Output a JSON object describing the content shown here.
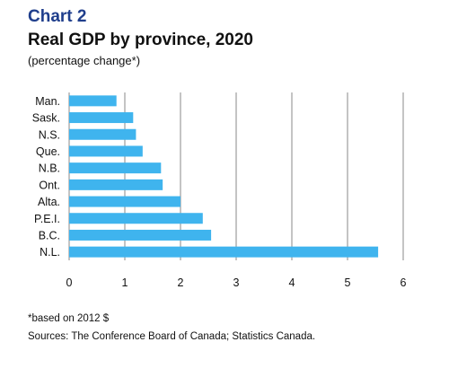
{
  "header": {
    "chart_number": "Chart 2",
    "title": "Real GDP by province, 2020",
    "subtitle": "(percentage change*)"
  },
  "footer": {
    "footnote": "*based on 2012 $",
    "source": "Sources: The Conference Board of Canada; Statistics Canada."
  },
  "colors": {
    "bar": "#3fb4ee",
    "grid": "#888888",
    "chart_number": "#1f3e8c"
  },
  "chart_data": {
    "type": "bar",
    "orientation": "horizontal",
    "title": "Real GDP by province, 2020",
    "subtitle": "(percentage change*)",
    "categories": [
      "Man.",
      "Sask.",
      "N.S.",
      "Que.",
      "N.B.",
      "Ont.",
      "Alta.",
      "P.E.I.",
      "B.C.",
      "N.L."
    ],
    "values": [
      0.85,
      1.15,
      1.2,
      1.32,
      1.65,
      1.68,
      2.0,
      2.4,
      2.55,
      5.55
    ],
    "xlim": [
      0,
      6
    ],
    "xticks": [
      0,
      1,
      2,
      3,
      4,
      5,
      6
    ],
    "xlabel": "",
    "ylabel": "",
    "grid": "vertical",
    "legend": "none"
  }
}
